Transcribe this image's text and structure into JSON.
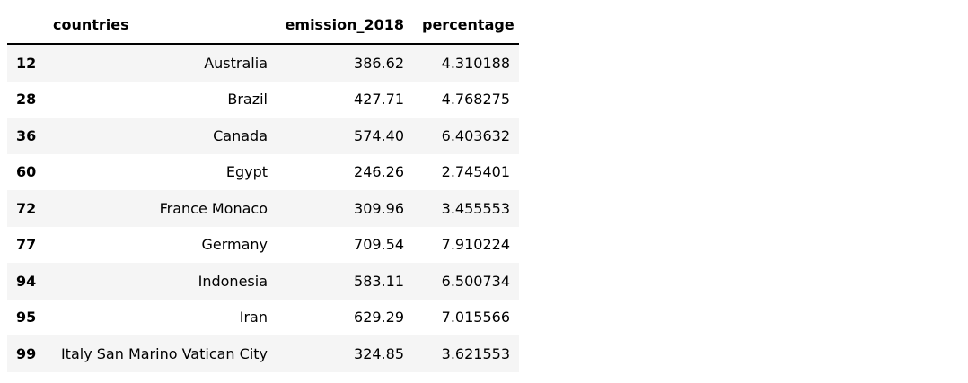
{
  "table": {
    "columns": [
      {
        "key": "index",
        "label": ""
      },
      {
        "key": "countries",
        "label": "countries"
      },
      {
        "key": "emission_2018",
        "label": "emission_2018"
      },
      {
        "key": "percentage",
        "label": "percentage"
      }
    ],
    "rows": [
      {
        "index": "12",
        "countries": "Australia",
        "emission_2018": "386.62",
        "percentage": "4.310188"
      },
      {
        "index": "28",
        "countries": "Brazil",
        "emission_2018": "427.71",
        "percentage": "4.768275"
      },
      {
        "index": "36",
        "countries": "Canada",
        "emission_2018": "574.40",
        "percentage": "6.403632"
      },
      {
        "index": "60",
        "countries": "Egypt",
        "emission_2018": "246.26",
        "percentage": "2.745401"
      },
      {
        "index": "72",
        "countries": "France Monaco",
        "emission_2018": "309.96",
        "percentage": "3.455553"
      },
      {
        "index": "77",
        "countries": "Germany",
        "emission_2018": "709.54",
        "percentage": "7.910224"
      },
      {
        "index": "94",
        "countries": "Indonesia",
        "emission_2018": "583.11",
        "percentage": "6.500734"
      },
      {
        "index": "95",
        "countries": "Iran",
        "emission_2018": "629.29",
        "percentage": "7.015566"
      },
      {
        "index": "99",
        "countries": "Italy San Marino Vatican City",
        "emission_2018": "324.85",
        "percentage": "3.621553"
      }
    ]
  },
  "colors": {
    "row_stripe": "#f5f5f5",
    "header_border": "#000000",
    "text": "#000000",
    "background": "#ffffff"
  }
}
